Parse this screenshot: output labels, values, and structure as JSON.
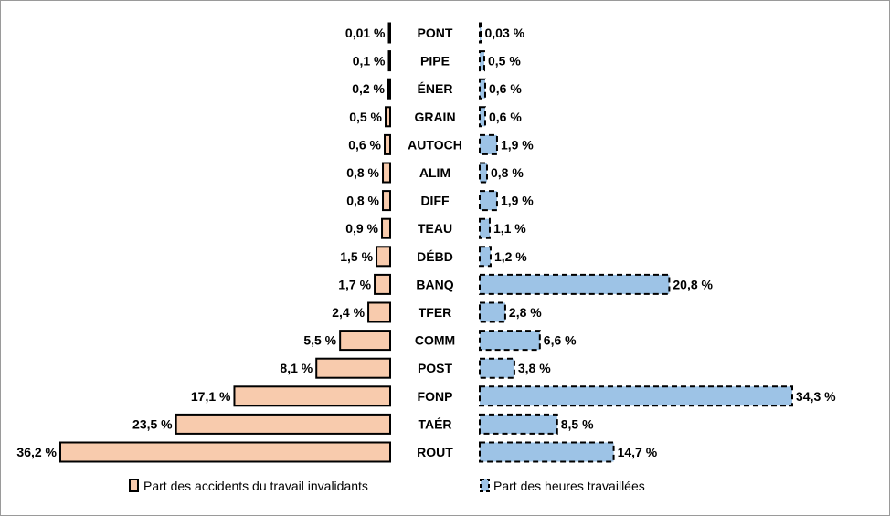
{
  "chart_data": {
    "type": "bar",
    "orientation": "horizontal-diverging",
    "categories": [
      "PONT",
      "PIPE",
      "ÉNER",
      "GRAIN",
      "AUTOCH",
      "ALIM",
      "DIFF",
      "TEAU",
      "DÉBD",
      "BANQ",
      "TFER",
      "COMM",
      "POST",
      "FONP",
      "TAÉR",
      "ROUT"
    ],
    "series": [
      {
        "name": "Part des accidents du travail invalidants",
        "values": [
          0.01,
          0.1,
          0.2,
          0.5,
          0.6,
          0.8,
          0.8,
          0.9,
          1.5,
          1.7,
          2.4,
          5.5,
          8.1,
          17.1,
          23.5,
          36.2
        ],
        "labels": [
          "0,01 %",
          "0,1 %",
          "0,2 %",
          "0,5 %",
          "0,6 %",
          "0,8 %",
          "0,8 %",
          "0,9 %",
          "1,5 %",
          "1,7 %",
          "2,4 %",
          "5,5 %",
          "8,1 %",
          "17,1 %",
          "23,5 %",
          "36,2 %"
        ],
        "color": "#f8cbad",
        "direction": "left"
      },
      {
        "name": "Part des heures travaillées",
        "values": [
          0.03,
          0.5,
          0.6,
          0.6,
          1.9,
          0.8,
          1.9,
          1.1,
          1.2,
          20.8,
          2.8,
          6.6,
          3.8,
          34.3,
          8.5,
          14.7
        ],
        "labels": [
          "0,03 %",
          "0,5 %",
          "0,6 %",
          "0,6 %",
          "1,9 %",
          "0,8 %",
          "1,9 %",
          "1,1 %",
          "1,2 %",
          "20,8 %",
          "2,8 %",
          "6,6 %",
          "3,8 %",
          "34,3 %",
          "8,5 %",
          "14,7 %"
        ],
        "color": "#9dc3e6",
        "direction": "right"
      }
    ],
    "legend_position": "bottom",
    "grid": false,
    "title": "",
    "xlabel": "",
    "ylabel": ""
  }
}
